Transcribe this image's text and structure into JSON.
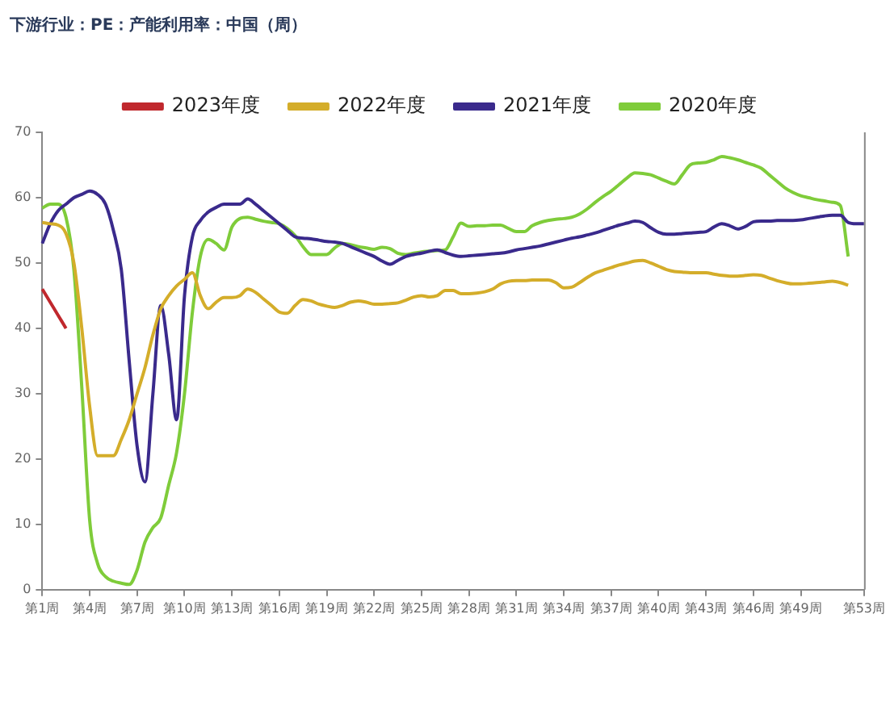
{
  "chart_data": {
    "type": "line",
    "title": "下游行业：PE：产能利用率：中国（周）",
    "categories": [
      "第1周",
      null,
      null,
      null,
      null,
      null,
      "第4周",
      null,
      null,
      null,
      null,
      null,
      "第7周",
      null,
      null,
      null,
      null,
      null,
      "第10周",
      null,
      null,
      null,
      null,
      null,
      "第13周",
      null,
      null,
      null,
      null,
      null,
      "第16周",
      null,
      null,
      null,
      null,
      null,
      "第19周",
      null,
      null,
      null,
      null,
      null,
      "第22周",
      null,
      null,
      null,
      null,
      null,
      "第25周",
      null,
      null,
      null,
      null,
      null,
      "第28周",
      null,
      null,
      null,
      null,
      null,
      "第31周",
      null,
      null,
      null,
      null,
      null,
      "第34周",
      null,
      null,
      null,
      null,
      null,
      "第37周",
      null,
      null,
      null,
      null,
      null,
      "第40周",
      null,
      null,
      null,
      null,
      null,
      "第43周",
      null,
      null,
      null,
      null,
      null,
      "第46周",
      null,
      null,
      null,
      null,
      null,
      "第49周",
      null,
      null,
      null,
      null,
      null,
      null,
      null,
      "第53周"
    ],
    "ylim": [
      0,
      70
    ],
    "yticks": [
      0,
      10,
      20,
      30,
      40,
      50,
      60,
      70
    ],
    "grid": false,
    "legend": "top",
    "marker": "none",
    "line_style": "solid",
    "series": [
      {
        "name": "2023年度",
        "color": "#c0282d",
        "values": [
          46,
          44,
          42,
          40,
          null,
          null,
          null,
          null,
          null,
          null,
          null,
          null,
          null,
          null,
          null,
          null,
          null,
          null,
          null,
          null,
          null,
          null,
          null,
          null,
          null,
          null,
          null,
          null,
          null,
          null,
          null,
          null,
          null,
          null,
          null,
          null,
          null,
          null,
          null,
          null,
          null,
          null,
          null,
          null,
          null,
          null,
          null,
          null,
          null,
          null,
          null,
          null,
          null,
          null,
          null,
          null,
          null,
          null,
          null,
          null,
          null,
          null,
          null,
          null,
          null,
          null,
          null,
          null,
          null,
          null,
          null,
          null,
          null,
          null,
          null,
          null,
          null,
          null,
          null,
          null,
          null,
          null,
          null,
          null,
          null,
          null,
          null,
          null,
          null,
          null,
          null,
          null,
          null,
          null,
          null,
          null,
          null,
          null,
          null,
          null,
          null,
          null,
          null,
          null,
          null
        ]
      },
      {
        "name": "2022年度",
        "color": "#d4ad2a",
        "values": [
          56.2,
          56,
          55.8,
          54.5,
          50,
          40,
          28,
          20.5,
          20.5,
          20.5,
          23,
          26,
          30,
          34,
          39,
          43,
          45,
          46.5,
          47.5,
          48.5,
          45,
          43,
          44,
          44.7,
          44.7,
          45,
          46,
          45.5,
          44.5,
          43.5,
          42.5,
          42.3,
          43.5,
          44.4,
          44.2,
          43.7,
          43.4,
          43.2,
          43.5,
          44,
          44.2,
          44,
          43.7,
          43.7,
          43.8,
          43.9,
          44.3,
          44.8,
          45,
          44.8,
          45,
          45.8,
          45.8,
          45.3,
          45.3,
          45.4,
          45.6,
          46,
          46.8,
          47.2,
          47.3,
          47.3,
          47.4,
          47.4,
          47.4,
          47,
          46.2,
          46.3,
          47,
          47.8,
          48.5,
          48.9,
          49.3,
          49.7,
          50,
          50.3,
          50.4,
          50,
          49.5,
          49,
          48.7,
          48.6,
          48.5,
          48.5,
          48.5,
          48.3,
          48.1,
          48,
          48,
          48.1,
          48.2,
          48.1,
          47.7,
          47.3,
          47,
          46.8,
          46.8,
          46.9,
          47,
          47.1,
          47.2,
          47,
          46.6,
          null,
          null
        ]
      },
      {
        "name": "2021年度",
        "color": "#3a2a8c",
        "values": [
          53,
          56,
          58,
          59,
          60,
          60.5,
          61,
          60.5,
          59,
          55,
          49,
          35,
          22,
          16.5,
          30,
          43.5,
          36,
          26,
          45,
          54,
          56.5,
          57.8,
          58.5,
          59,
          59,
          59,
          59.8,
          59,
          58,
          57,
          56,
          55,
          54,
          53.8,
          53.7,
          53.5,
          53.3,
          53.2,
          53,
          52.5,
          52,
          51.5,
          51,
          50.3,
          49.8,
          50.4,
          51,
          51.3,
          51.5,
          51.8,
          52,
          51.6,
          51.2,
          51,
          51.1,
          51.2,
          51.3,
          51.4,
          51.5,
          51.7,
          52,
          52.2,
          52.4,
          52.6,
          52.9,
          53.2,
          53.5,
          53.8,
          54,
          54.3,
          54.6,
          55,
          55.4,
          55.8,
          56.1,
          56.4,
          56.2,
          55.4,
          54.7,
          54.4,
          54.4,
          54.5,
          54.6,
          54.7,
          54.8,
          55.5,
          56,
          55.7,
          55.2,
          55.6,
          56.3,
          56.4,
          56.4,
          56.5,
          56.5,
          56.5,
          56.6,
          56.8,
          57,
          57.2,
          57.3,
          57.3,
          56.2,
          56,
          56
        ]
      },
      {
        "name": "2020年度",
        "color": "#7fcc3a",
        "values": [
          58.4,
          59,
          59,
          57,
          49,
          31,
          10.6,
          4,
          2,
          1.3,
          1,
          0.8,
          3,
          7.3,
          9.5,
          11,
          16,
          21,
          30,
          42.5,
          51,
          53.6,
          53,
          52,
          55.5,
          56.8,
          57,
          56.7,
          56.4,
          56.2,
          56,
          55.3,
          54.2,
          52.5,
          51.3,
          51.3,
          51.3,
          52.3,
          53,
          52.8,
          52.5,
          52.3,
          52.1,
          52.4,
          52.2,
          51.5,
          51.3,
          51.5,
          51.7,
          51.8,
          51.9,
          52,
          54,
          56.1,
          55.6,
          55.7,
          55.7,
          55.8,
          55.8,
          55.3,
          54.8,
          54.8,
          55.7,
          56.2,
          56.5,
          56.7,
          56.8,
          57,
          57.5,
          58.3,
          59.3,
          60.2,
          61,
          62,
          63,
          63.8,
          63.7,
          63.5,
          63,
          62.5,
          62.1,
          63.5,
          65,
          65.3,
          65.4,
          65.8,
          66.3,
          66.1,
          65.8,
          65.4,
          65,
          64.5,
          63.5,
          62.5,
          61.5,
          60.8,
          60.3,
          60,
          59.7,
          59.5,
          59.3,
          58.8,
          51,
          null,
          null
        ]
      }
    ]
  }
}
